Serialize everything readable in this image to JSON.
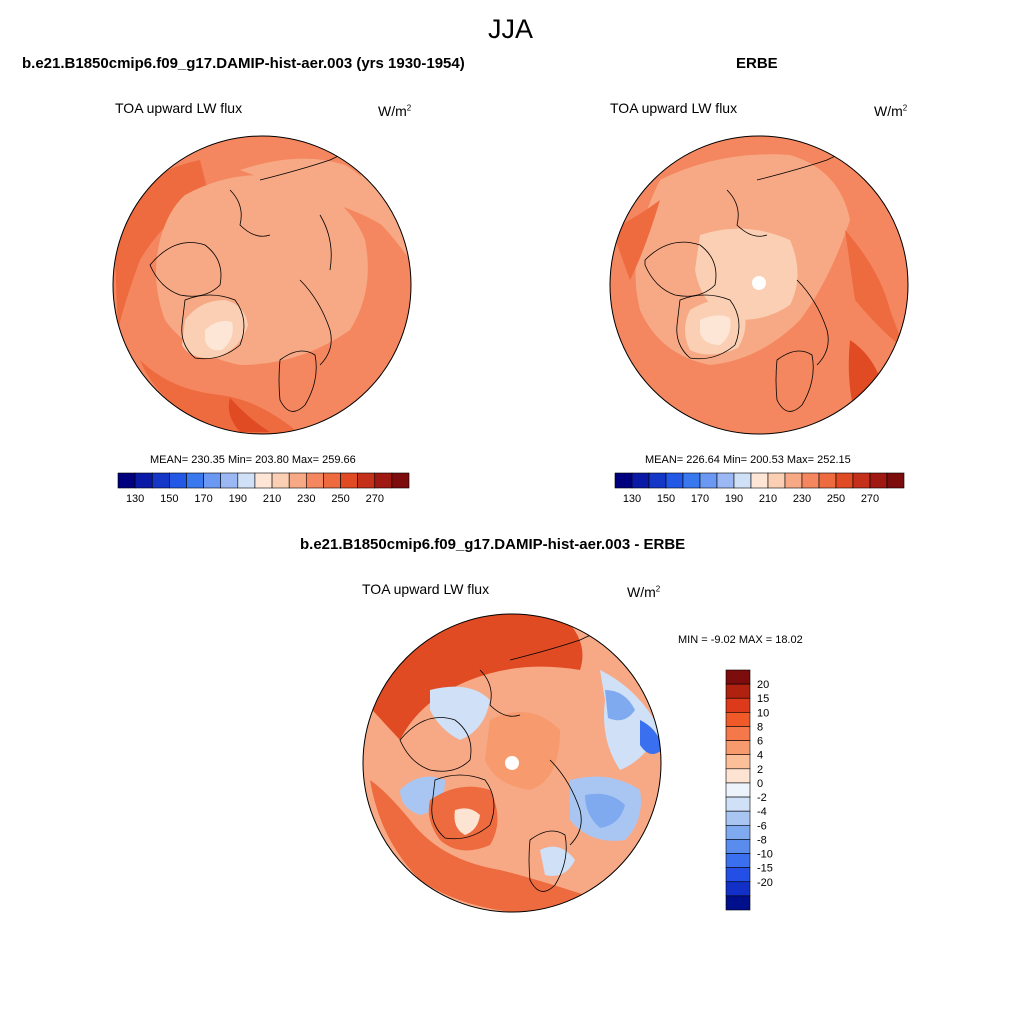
{
  "title": "JJA",
  "panels": [
    {
      "title": "b.e21.B1850cmip6.f09_g17.DAMIP-hist-aer.003 (yrs 1930-1954)",
      "variable": "TOA upward LW flux",
      "units_base": "W/m",
      "units_exp": "2",
      "stats": "MEAN= 230.35  Min= 203.80  Max= 259.66"
    },
    {
      "title": "ERBE",
      "variable": "TOA upward LW flux",
      "units_base": "W/m",
      "units_exp": "2",
      "stats": "MEAN= 226.64  Min= 200.53  Max= 252.15"
    },
    {
      "title": "b.e21.B1850cmip6.f09_g17.DAMIP-hist-aer.003 - ERBE",
      "variable": "TOA upward LW flux",
      "units_base": "W/m",
      "units_exp": "2",
      "stats": "MIN =  -9.02 MAX =  18.02"
    }
  ],
  "abs_colorbar": {
    "colors": [
      "#00007f",
      "#0a1aa6",
      "#1537c8",
      "#2358e6",
      "#3a78f0",
      "#6a98f3",
      "#9bb8f5",
      "#cfe0f7",
      "#fde6d6",
      "#fbcfb3",
      "#f7a985",
      "#f4875f",
      "#ee6a3f",
      "#e04b24",
      "#c4301a",
      "#a01812",
      "#7d0c0c"
    ],
    "tick_labels": [
      "130",
      "150",
      "170",
      "190",
      "210",
      "230",
      "250",
      "270"
    ]
  },
  "diff_colorbar": {
    "colors": [
      "#7d0c0c",
      "#b0210f",
      "#dc3a1a",
      "#f05a28",
      "#f4784a",
      "#f79a6e",
      "#fbbf9a",
      "#fde3d2",
      "#edf3fb",
      "#cfe0f7",
      "#a9c6f3",
      "#7faaf0",
      "#5a8cee",
      "#3a6ff0",
      "#234fe6",
      "#1230c8",
      "#000f8c"
    ],
    "tick_labels": [
      "20",
      "15",
      "10",
      "8",
      "6",
      "4",
      "2",
      "0",
      "-2",
      "-4",
      "-6",
      "-8",
      "-10",
      "-15",
      "-20"
    ]
  },
  "colors": {
    "ocean_warm": "#f4875f",
    "land_mid": "#f7a985",
    "greenland_cold": "#fde6d6",
    "deep_warm": "#e04b24",
    "cool_blue": "#7faaf0"
  }
}
